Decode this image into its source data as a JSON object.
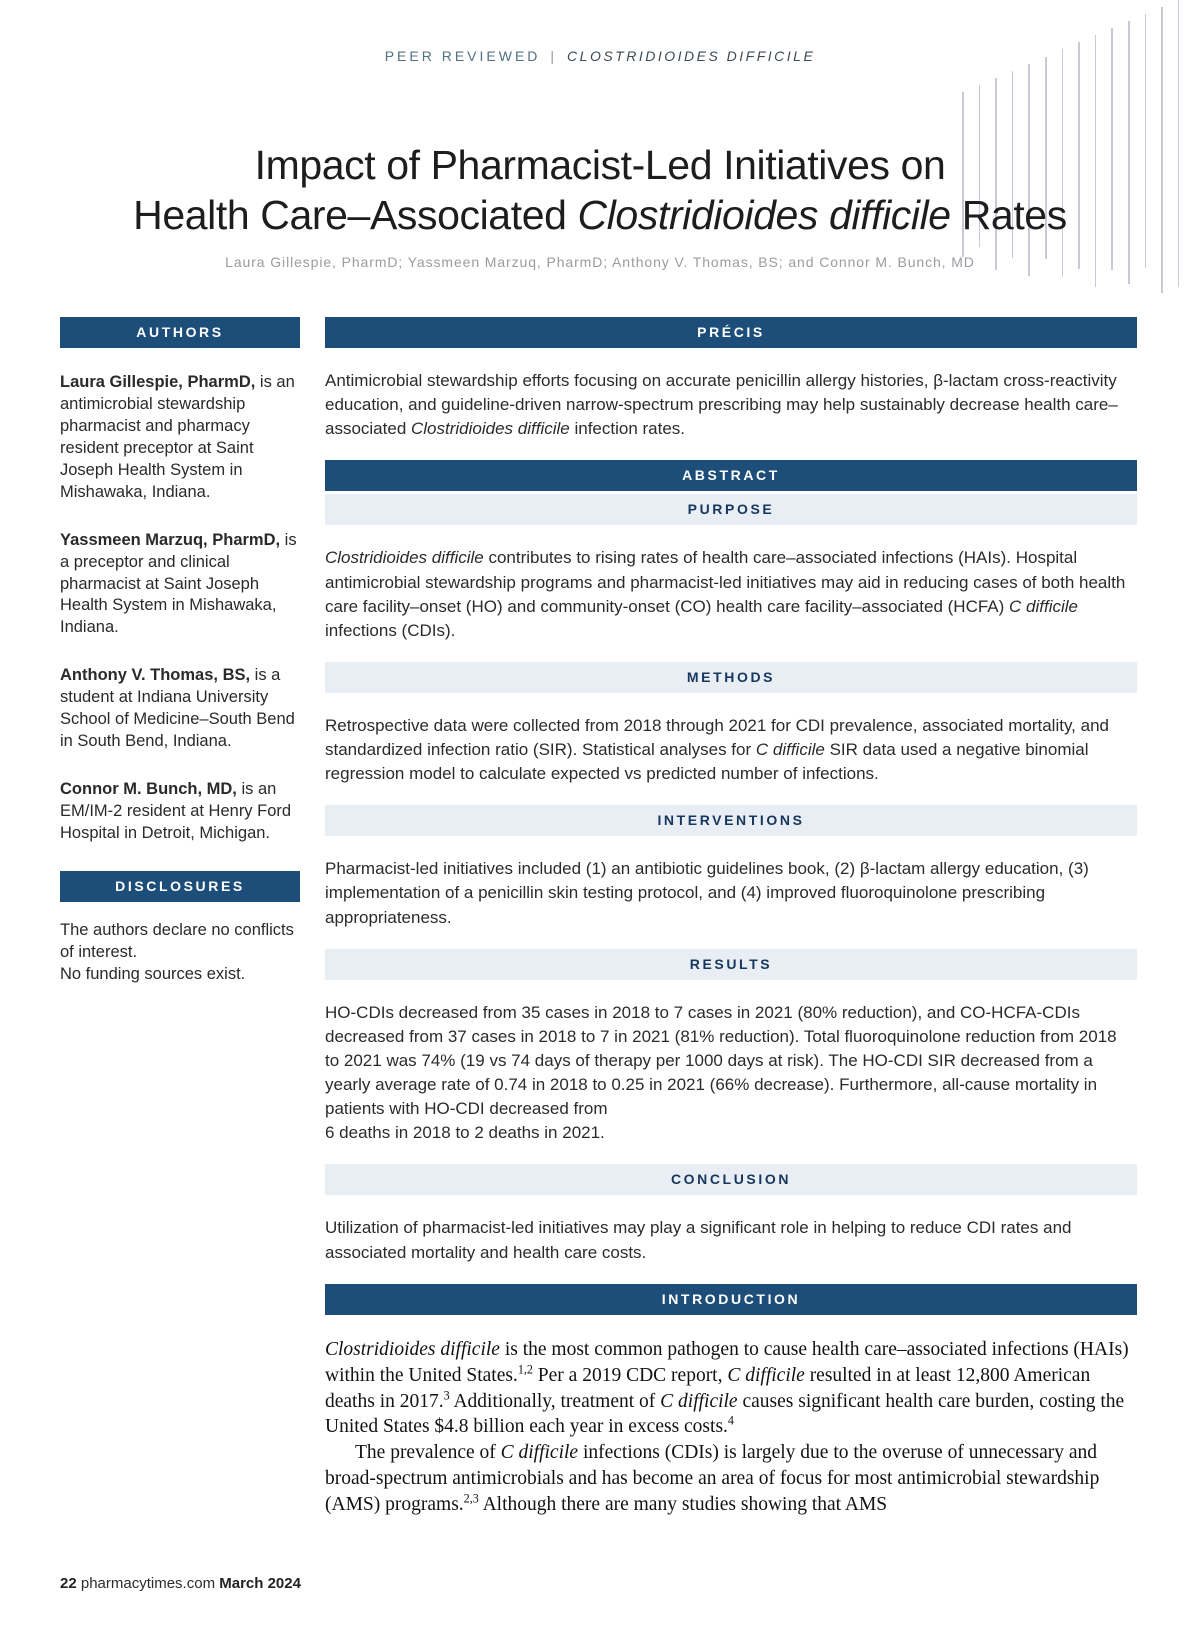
{
  "colors": {
    "navy": "#1d4e79",
    "bar_light": "#e9edf4",
    "bar_light_text": "#16375d",
    "eyebrow": "#53707f",
    "byline": "#9b9ba1",
    "body": "#2b2b2b",
    "deco_line": "#c7cad6"
  },
  "eyebrow": {
    "left": "PEER REVIEWED",
    "separator": "|",
    "right": "CLOSTRIDIOIDES DIFFICILE"
  },
  "title": {
    "line1": "Impact of Pharmacist-Led Initiatives on",
    "line2": [
      {
        "t": "Health Care–Associated "
      },
      {
        "t": "Clostridioides difficile",
        "i": true
      },
      {
        "t": " Rates"
      }
    ]
  },
  "byline": "Laura Gillespie, PharmD; Yassmeen Marzuq, PharmD; Anthony V. Thomas, BS; and Connor M. Bunch, MD",
  "sidebar": {
    "authors_header": "AUTHORS",
    "authors": [
      [
        {
          "t": "Laura Gillespie, PharmD,",
          "b": true
        },
        {
          "t": " is an antimicrobial stewardship pharmacist and pharmacy resident preceptor at Saint Joseph Health System in Mishawaka, Indiana."
        }
      ],
      [
        {
          "t": "Yassmeen Marzuq, PharmD,",
          "b": true
        },
        {
          "t": " is a preceptor and clinical pharmacist at Saint Joseph Health System in Mishawaka, Indiana."
        }
      ],
      [
        {
          "t": "Anthony V. Thomas, BS,",
          "b": true
        },
        {
          "t": " is a student at Indiana University School of Medicine–South Bend in South Bend, Indiana."
        }
      ],
      [
        {
          "t": "Connor M. Bunch, MD,",
          "b": true
        },
        {
          "t": " is an EM/IM-2 resident at Henry Ford Hospital in Detroit, Michigan."
        }
      ]
    ],
    "disclosures_header": "DISCLOSURES",
    "disclosures": [
      "The authors declare no conflicts of interest.",
      "No funding sources exist."
    ]
  },
  "main": {
    "precis": {
      "label": "PRÉCIS",
      "body": [
        {
          "t": "Antimicrobial stewardship efforts focusing on accurate penicillin allergy histories, β-lactam cross-reactivity education, and guideline-driven narrow-spectrum prescribing may help sustainably decrease health care–associated "
        },
        {
          "t": "Clostridioides difficile",
          "i": true
        },
        {
          "t": " infection rates."
        }
      ]
    },
    "abstract": {
      "label": "ABSTRACT"
    },
    "purpose": {
      "label": "PURPOSE",
      "body": [
        {
          "t": "Clostridioides difficile",
          "i": true
        },
        {
          "t": " contributes to rising rates of health care–associated infections (HAIs). Hospital antimicrobial stewardship programs and pharmacist-led initiatives may aid in reducing cases of both health care facility–onset (HO) and community-onset (CO) health care facility–associated (HCFA) "
        },
        {
          "t": "C difficile",
          "i": true
        },
        {
          "t": " infections (CDIs)."
        }
      ]
    },
    "methods": {
      "label": "METHODS",
      "body": [
        {
          "t": "Retrospective data were collected from 2018 through 2021 for CDI prevalence, associated mortality, and standardized infection ratio (SIR). Statistical analyses for "
        },
        {
          "t": "C difficile",
          "i": true
        },
        {
          "t": " SIR data used a negative binomial regression model to calculate expected vs predicted number of infections."
        }
      ]
    },
    "interventions": {
      "label": "INTERVENTIONS",
      "body": [
        {
          "t": "Pharmacist-led initiatives included (1) an antibiotic guidelines book, (2) β-lactam allergy education, (3) implementation of a penicillin skin testing protocol, and (4) improved fluoroquinolone prescribing appropriateness."
        }
      ]
    },
    "results": {
      "label": "RESULTS",
      "body": [
        {
          "t": "HO-CDIs decreased from 35 cases in 2018 to 7 cases in 2021 (80% reduction), and CO-HCFA-CDIs decreased from 37 cases in 2018 to 7 in 2021 (81% reduction). Total fluoroquinolone reduction from 2018 to 2021 was 74% (19 vs 74 days of therapy per 1000 days at risk). The HO-CDI SIR decreased from a yearly average rate of 0.74 in 2018 to 0.25 in 2021 (66% decrease). Furthermore, all-cause mortality in patients with HO-CDI decreased from"
        },
        {
          "t": "6 deaths in 2018 to 2 deaths in 2021.",
          "br": true
        }
      ]
    },
    "conclusion": {
      "label": "CONCLUSION",
      "body": [
        {
          "t": "Utilization of pharmacist-led initiatives may play a significant role in helping to reduce CDI rates and associated mortality and health care costs."
        }
      ]
    },
    "introduction": {
      "label": "INTRODUCTION",
      "paragraphs": [
        [
          {
            "t": "Clostridioides difficile",
            "i": true
          },
          {
            "t": " is the most common pathogen to cause health care–associated infections (HAIs) within the United States."
          },
          {
            "t": "1,2",
            "sup": true
          },
          {
            "t": " Per a 2019 CDC report, "
          },
          {
            "t": "C difficile",
            "i": true
          },
          {
            "t": " resulted in at least 12,800 American deaths in 2017."
          },
          {
            "t": "3",
            "sup": true
          },
          {
            "t": " Additionally, treatment of "
          },
          {
            "t": "C difficile",
            "i": true
          },
          {
            "t": " causes significant health care burden, costing the United States $4.8 billion each year in excess costs."
          },
          {
            "t": "4",
            "sup": true
          }
        ],
        [
          {
            "t": "The prevalence of "
          },
          {
            "t": "C difficile",
            "i": true
          },
          {
            "t": " infections (CDIs) is largely due to the overuse of unnecessary and broad-spectrum antimicrobials and has become an area of focus for most antimicrobial stewardship (AMS) programs."
          },
          {
            "t": "2,3",
            "sup": true
          },
          {
            "t": " Although there are many studies showing that AMS"
          }
        ]
      ]
    }
  },
  "footer": {
    "page_number": "22",
    "site": "pharmacytimes.com",
    "issue": "March 2024"
  }
}
